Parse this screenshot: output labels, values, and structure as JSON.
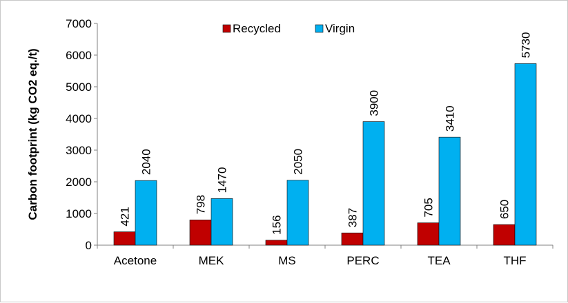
{
  "chart_data": {
    "type": "bar",
    "title": "",
    "xlabel": "",
    "ylabel": "Carbon footprint (kg CO2 eq./t)",
    "ylim": [
      0,
      7000
    ],
    "yticks": [
      0,
      1000,
      2000,
      3000,
      4000,
      5000,
      6000,
      7000
    ],
    "categories": [
      "Acetone",
      "MEK",
      "MS",
      "PERC",
      "TEA",
      "THF"
    ],
    "series": [
      {
        "name": "Recycled",
        "color": "#c00000",
        "values": [
          421,
          798,
          156,
          387,
          705,
          650
        ]
      },
      {
        "name": "Virgin",
        "color": "#00b0f0",
        "values": [
          2040,
          1470,
          2050,
          3900,
          3410,
          5730
        ]
      }
    ],
    "grid": false,
    "legend": "top-center"
  }
}
